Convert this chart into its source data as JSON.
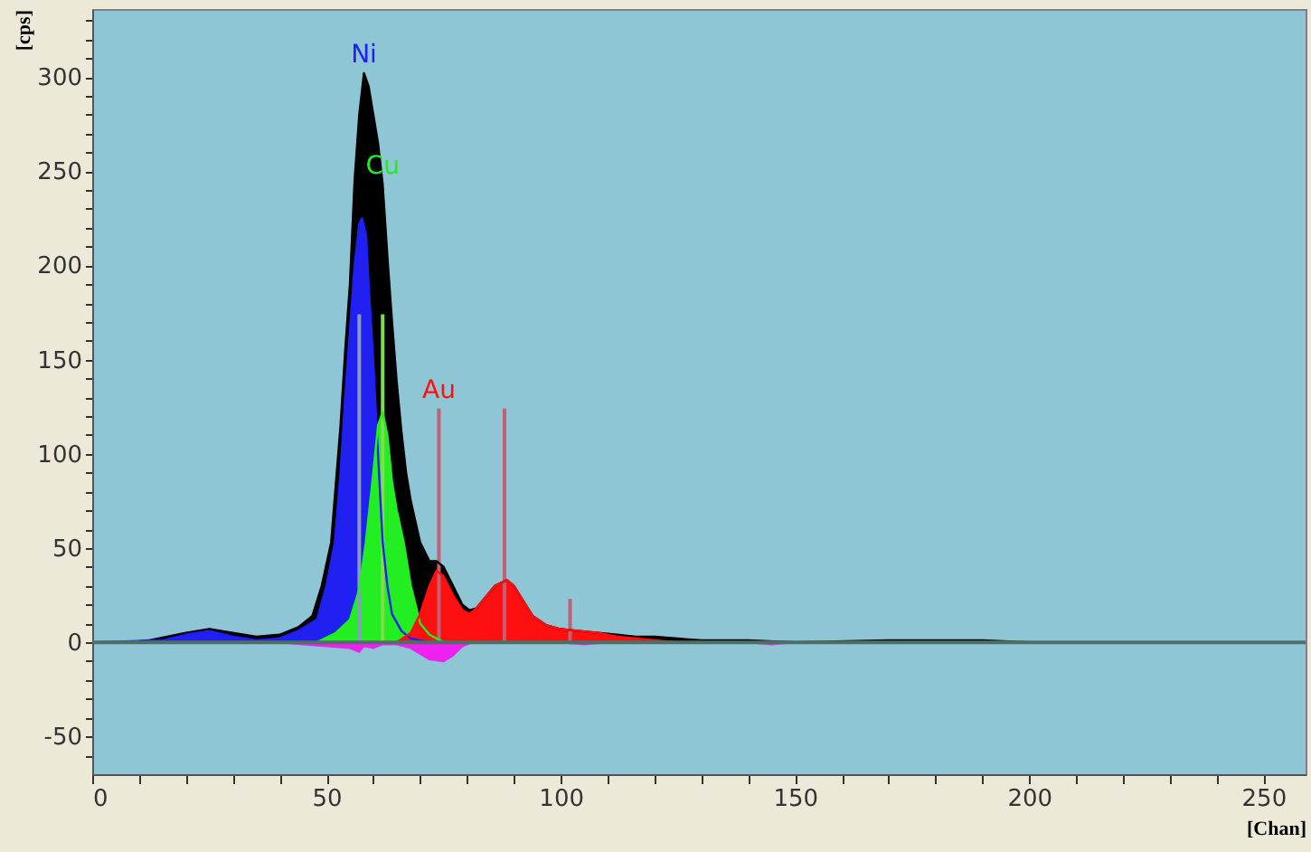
{
  "chart_data": {
    "type": "area",
    "xlabel": "[Chan]",
    "ylabel": "[cps]",
    "xlim": [
      0,
      259
    ],
    "ylim": [
      -70,
      336
    ],
    "xticks": [
      0,
      {
        "value": 10,
        "label": null
      },
      {
        "value": 20,
        "label": null
      },
      {
        "value": 30,
        "label": null
      },
      {
        "value": 40,
        "label": null
      },
      50,
      {
        "value": 60,
        "label": null
      },
      {
        "value": 70,
        "label": null
      },
      {
        "value": 80,
        "label": null
      },
      {
        "value": 90,
        "label": null
      },
      100,
      {
        "value": 110,
        "label": null
      },
      {
        "value": 120,
        "label": null
      },
      {
        "value": 130,
        "label": null
      },
      {
        "value": 140,
        "label": null
      },
      150,
      {
        "value": 160,
        "label": null
      },
      {
        "value": 170,
        "label": null
      },
      {
        "value": 180,
        "label": null
      },
      {
        "value": 190,
        "label": null
      },
      200,
      {
        "value": 210,
        "label": null
      },
      {
        "value": 220,
        "label": null
      },
      {
        "value": 230,
        "label": null
      },
      {
        "value": 240,
        "label": null
      },
      250
    ],
    "yticks": [
      {
        "value": -60,
        "label": null
      },
      -50,
      {
        "value": -40,
        "label": null
      },
      {
        "value": -30,
        "label": null
      },
      {
        "value": -20,
        "label": null
      },
      {
        "value": -10,
        "label": null
      },
      0,
      {
        "value": 10,
        "label": null
      },
      {
        "value": 20,
        "label": null
      },
      {
        "value": 30,
        "label": null
      },
      {
        "value": 40,
        "label": null
      },
      50,
      {
        "value": 60,
        "label": null
      },
      {
        "value": 70,
        "label": null
      },
      {
        "value": 80,
        "label": null
      },
      {
        "value": 90,
        "label": null
      },
      100,
      {
        "value": 110,
        "label": null
      },
      {
        "value": 120,
        "label": null
      },
      {
        "value": 130,
        "label": null
      },
      {
        "value": 140,
        "label": null
      },
      150,
      {
        "value": 160,
        "label": null
      },
      {
        "value": 170,
        "label": null
      },
      {
        "value": 180,
        "label": null
      },
      {
        "value": 190,
        "label": null
      },
      200,
      {
        "value": 210,
        "label": null
      },
      {
        "value": 220,
        "label": null
      },
      {
        "value": 230,
        "label": null
      },
      {
        "value": 240,
        "label": null
      },
      250,
      {
        "value": 260,
        "label": null
      },
      {
        "value": 270,
        "label": null
      },
      {
        "value": 280,
        "label": null
      },
      {
        "value": 290,
        "label": null
      },
      300,
      {
        "value": 310,
        "label": null
      },
      {
        "value": 320,
        "label": null
      },
      {
        "value": 330,
        "label": null
      }
    ],
    "series": [
      {
        "color": "#000000",
        "x": [
          0,
          8,
          12,
          16,
          20,
          25,
          30,
          35,
          40,
          44,
          47,
          49,
          51,
          53,
          54,
          55,
          56,
          57,
          58,
          59,
          60,
          61,
          62,
          63,
          64,
          65,
          66,
          67,
          68,
          70,
          72,
          73.5,
          75,
          77,
          79,
          80.5,
          82,
          84,
          86,
          88.5,
          90,
          92,
          94,
          97,
          100,
          104,
          108,
          112,
          116,
          120,
          125,
          130,
          140,
          150,
          170,
          190,
          200,
          210,
          259
        ],
        "values": [
          0,
          0,
          1,
          3,
          5,
          7,
          5,
          3,
          4,
          8,
          14,
          30,
          53,
          115,
          155,
          190,
          245,
          280,
          302,
          295,
          280,
          265,
          243,
          205,
          170,
          138,
          112,
          90,
          75,
          53,
          43,
          43,
          40,
          30,
          20,
          17,
          18,
          24,
          30,
          33,
          30,
          22,
          14,
          9,
          7,
          6,
          5,
          4,
          3,
          3,
          2,
          1,
          1,
          0,
          1,
          1,
          0,
          0,
          0
        ]
      },
      {
        "color": "#2020f0",
        "x": [
          0,
          15,
          20,
          25,
          30,
          35,
          40,
          44,
          48,
          50,
          51.8,
          53,
          54,
          55,
          56,
          57,
          57.6,
          58.5,
          59,
          60,
          61,
          62,
          63,
          64,
          66,
          68,
          72,
          259
        ],
        "values": [
          0,
          1,
          4,
          6,
          3,
          1,
          2,
          6,
          12,
          30,
          53,
          90,
          130,
          165,
          200,
          222,
          225,
          215,
          190,
          149,
          100,
          53,
          30,
          15,
          6,
          2,
          0,
          0
        ]
      },
      {
        "color": "#22ee22",
        "x": [
          48,
          52,
          55,
          57,
          58.4,
          60,
          61,
          62,
          63,
          64,
          65,
          66.5,
          68,
          70,
          72,
          75
        ],
        "values": [
          0,
          5,
          12,
          28,
          53,
          90,
          115,
          122,
          110,
          85,
          70,
          53,
          30,
          10,
          4,
          0
        ]
      },
      {
        "color": "#ff1010",
        "x": [
          65,
          68,
          70,
          72,
          73.5,
          75,
          77,
          79,
          80.5,
          82,
          84,
          86,
          88.5,
          90,
          92,
          94,
          97,
          100,
          104,
          108,
          112,
          116,
          120,
          125
        ],
        "values": [
          0,
          5,
          15,
          30,
          38,
          35,
          25,
          17,
          15,
          18,
          24,
          30,
          33,
          30,
          22,
          14,
          9,
          7,
          6,
          5,
          3,
          2,
          1,
          0
        ]
      },
      {
        "color": "#ee22ee",
        "x": [
          40,
          45,
          50,
          55,
          57,
          58,
          60,
          62,
          65,
          68,
          70,
          72,
          75,
          77,
          79,
          81,
          100,
          105,
          110,
          140,
          145,
          150
        ],
        "values": [
          0,
          -1,
          -2,
          -3,
          -5,
          -2,
          -3,
          -1,
          -1,
          -3,
          -6,
          -9,
          -10,
          -7,
          -2,
          0,
          0,
          -1,
          0,
          0,
          -1,
          0
        ]
      },
      {
        "type": "bar",
        "x": [
          57,
          62,
          74,
          88,
          102
        ],
        "values": [
          174,
          174,
          124,
          124,
          23
        ],
        "colors": [
          "#8a9ac8",
          "#7de04a",
          "#c06070",
          "#c06070",
          "#c06070"
        ]
      }
    ],
    "ref_lines": [
      {
        "axis": "y",
        "value": 0,
        "color": "#4f6f66"
      }
    ],
    "annotations": [
      {
        "text": "Ni",
        "x": 58,
        "y": 302
      },
      {
        "text": "Cu",
        "x": 62,
        "y": 243
      },
      {
        "text": "Au",
        "x": 74,
        "y": 124
      }
    ]
  }
}
